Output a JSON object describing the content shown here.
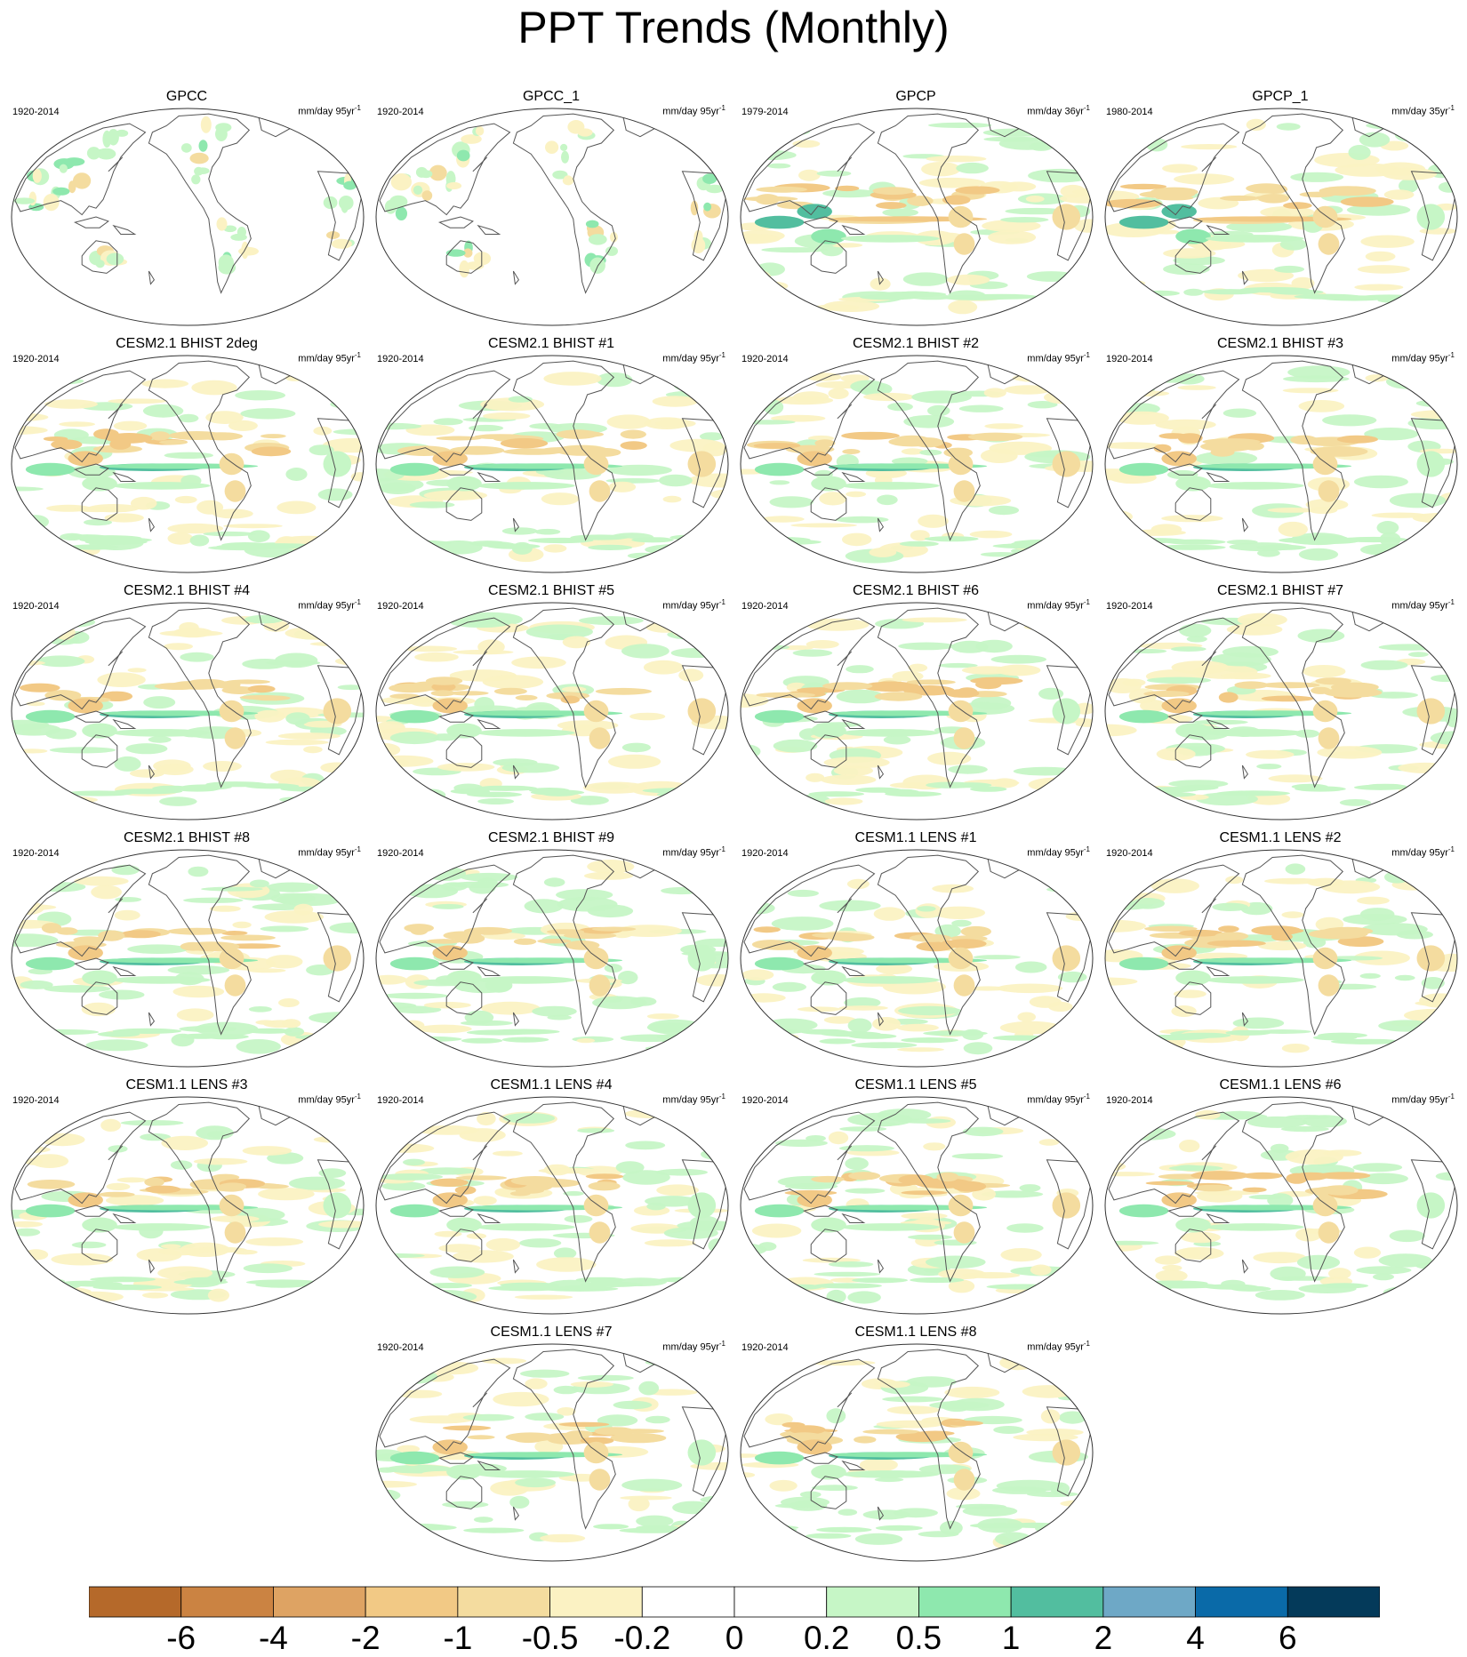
{
  "title": "PPT Trends (Monthly)",
  "colorbar": {
    "colors": [
      "#b5692a",
      "#cb8342",
      "#dea363",
      "#f2c985",
      "#f4dc9f",
      "#fbf2c3",
      "#ffffff",
      "#ffffff",
      "#c6f6c6",
      "#8ee8ae",
      "#52be9f",
      "#6ea8c6",
      "#0a6aa8",
      "#043a5a"
    ],
    "labels": [
      "-6",
      "-4",
      "-2",
      "-1",
      "-0.5",
      "-0.2",
      "0",
      "0.2",
      "0.5",
      "1",
      "2",
      "4",
      "6"
    ]
  },
  "panels": [
    {
      "title": "GPCC",
      "period": "1920-2014",
      "units": "mm/day 95yr",
      "sup": "-1",
      "style": "obs-land"
    },
    {
      "title": "GPCC_1",
      "period": "1920-2014",
      "units": "mm/day 95yr",
      "sup": "-1",
      "style": "obs-land"
    },
    {
      "title": "GPCP",
      "period": "1979-2014",
      "units": "mm/day 36yr",
      "sup": "-1",
      "style": "obs-full"
    },
    {
      "title": "GPCP_1",
      "period": "1980-2014",
      "units": "mm/day 35yr",
      "sup": "-1",
      "style": "obs-full"
    },
    {
      "title": "CESM2.1 BHIST 2deg",
      "period": "1920-2014",
      "units": "mm/day 95yr",
      "sup": "-1",
      "style": "model"
    },
    {
      "title": "CESM2.1 BHIST #1",
      "period": "1920-2014",
      "units": "mm/day 95yr",
      "sup": "-1",
      "style": "model"
    },
    {
      "title": "CESM2.1 BHIST #2",
      "period": "1920-2014",
      "units": "mm/day 95yr",
      "sup": "-1",
      "style": "model"
    },
    {
      "title": "CESM2.1 BHIST #3",
      "period": "1920-2014",
      "units": "mm/day 95yr",
      "sup": "-1",
      "style": "model"
    },
    {
      "title": "CESM2.1 BHIST #4",
      "period": "1920-2014",
      "units": "mm/day 95yr",
      "sup": "-1",
      "style": "model"
    },
    {
      "title": "CESM2.1 BHIST #5",
      "period": "1920-2014",
      "units": "mm/day 95yr",
      "sup": "-1",
      "style": "model"
    },
    {
      "title": "CESM2.1 BHIST #6",
      "period": "1920-2014",
      "units": "mm/day 95yr",
      "sup": "-1",
      "style": "model"
    },
    {
      "title": "CESM2.1 BHIST #7",
      "period": "1920-2014",
      "units": "mm/day 95yr",
      "sup": "-1",
      "style": "model"
    },
    {
      "title": "CESM2.1 BHIST #8",
      "period": "1920-2014",
      "units": "mm/day 95yr",
      "sup": "-1",
      "style": "model"
    },
    {
      "title": "CESM2.1 BHIST #9",
      "period": "1920-2014",
      "units": "mm/day 95yr",
      "sup": "-1",
      "style": "model"
    },
    {
      "title": "CESM1.1 LENS #1",
      "period": "1920-2014",
      "units": "mm/day 95yr",
      "sup": "-1",
      "style": "model"
    },
    {
      "title": "CESM1.1 LENS #2",
      "period": "1920-2014",
      "units": "mm/day 95yr",
      "sup": "-1",
      "style": "model"
    },
    {
      "title": "CESM1.1 LENS #3",
      "period": "1920-2014",
      "units": "mm/day 95yr",
      "sup": "-1",
      "style": "model"
    },
    {
      "title": "CESM1.1 LENS #4",
      "period": "1920-2014",
      "units": "mm/day 95yr",
      "sup": "-1",
      "style": "model"
    },
    {
      "title": "CESM1.1 LENS #5",
      "period": "1920-2014",
      "units": "mm/day 95yr",
      "sup": "-1",
      "style": "model"
    },
    {
      "title": "CESM1.1 LENS #6",
      "period": "1920-2014",
      "units": "mm/day 95yr",
      "sup": "-1",
      "style": "model"
    },
    {
      "title": "CESM1.1 LENS #7",
      "period": "1920-2014",
      "units": "mm/day 95yr",
      "sup": "-1",
      "style": "model"
    },
    {
      "title": "CESM1.1 LENS #8",
      "period": "1920-2014",
      "units": "mm/day 95yr",
      "sup": "-1",
      "style": "model"
    }
  ]
}
